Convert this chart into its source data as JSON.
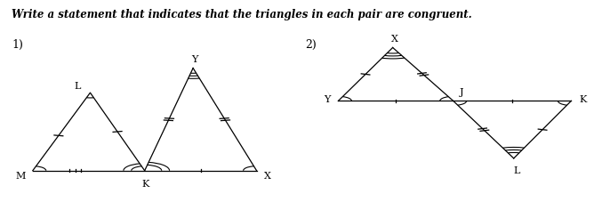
{
  "title": "Write a statement that indicates that the triangles in each pair are congruent.",
  "bg_color": "#ffffff",
  "fig_width": 6.86,
  "fig_height": 2.36,
  "dpi": 100,
  "label1": "1)",
  "label2": "2)"
}
